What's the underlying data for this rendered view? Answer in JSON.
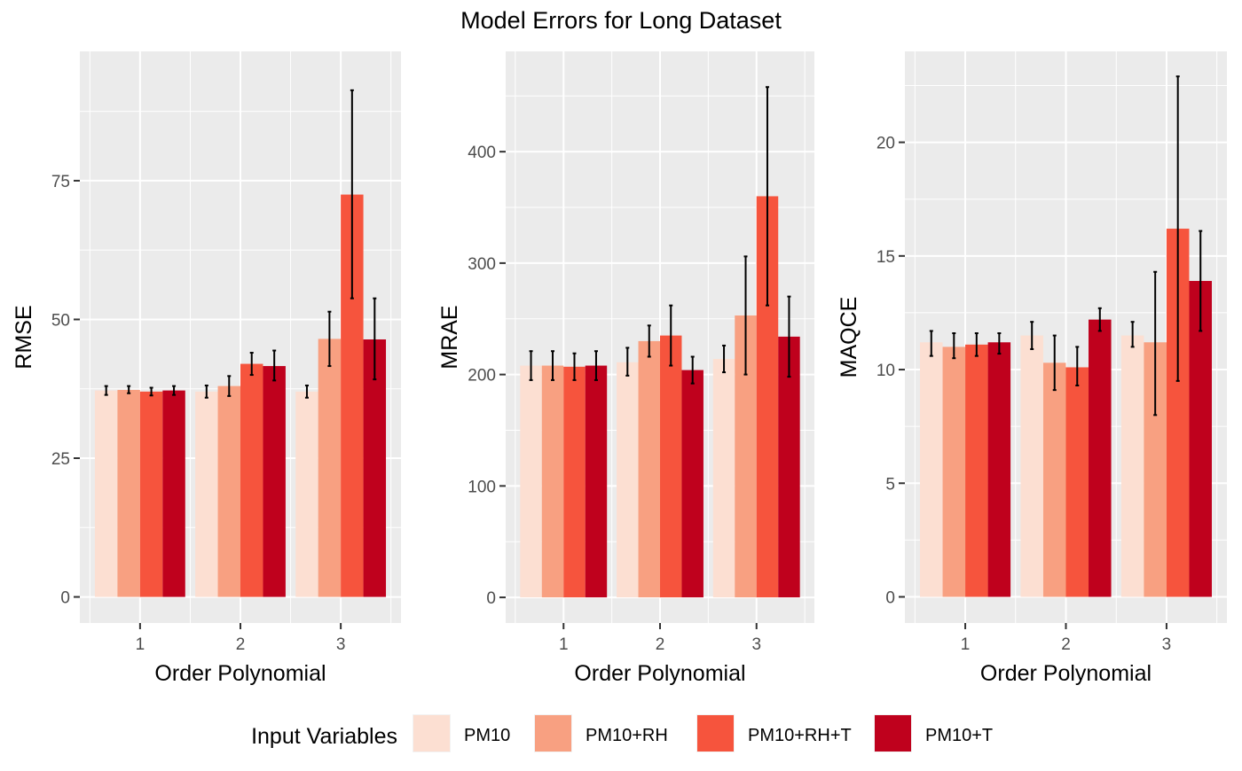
{
  "title": "Model Errors for Long Dataset",
  "legend": {
    "title": "Input Variables",
    "position": "bottom",
    "entries": [
      {
        "label": "PM10",
        "color": "#FCDFD2"
      },
      {
        "label": "PM10+RH",
        "color": "#F8A081"
      },
      {
        "label": "PM10+RH+T",
        "color": "#F6543D"
      },
      {
        "label": "PM10+T",
        "color": "#BF011D"
      }
    ]
  },
  "chart_data": [
    {
      "type": "bar",
      "xlabel": "Order Polynomial",
      "ylabel": "RMSE",
      "categories": [
        "1",
        "2",
        "3"
      ],
      "ylim": [
        -4.7,
        98.3
      ],
      "yticks": [
        0,
        25,
        50,
        75
      ],
      "grid": true,
      "series": [
        {
          "name": "PM10",
          "values": [
            37.2,
            37.0,
            37.0
          ],
          "err_low": [
            36.4,
            35.9,
            35.9
          ],
          "err_high": [
            38.0,
            38.1,
            38.1
          ]
        },
        {
          "name": "PM10+RH",
          "values": [
            37.3,
            38.0,
            46.5
          ],
          "err_low": [
            36.7,
            36.2,
            41.6
          ],
          "err_high": [
            38.0,
            39.8,
            51.4
          ]
        },
        {
          "name": "PM10+RH+T",
          "values": [
            37.0,
            42.0,
            72.5
          ],
          "err_low": [
            36.3,
            40.0,
            53.8
          ],
          "err_high": [
            37.7,
            44.0,
            91.3
          ]
        },
        {
          "name": "PM10+T",
          "values": [
            37.2,
            41.6,
            46.4
          ],
          "err_low": [
            36.4,
            39.0,
            39.2
          ],
          "err_high": [
            38.0,
            44.4,
            53.8
          ]
        }
      ]
    },
    {
      "type": "bar",
      "xlabel": "Order Polynomial",
      "ylabel": "MRAE",
      "categories": [
        "1",
        "2",
        "3"
      ],
      "ylim": [
        -23,
        490
      ],
      "yticks": [
        0,
        100,
        200,
        300,
        400
      ],
      "grid": true,
      "series": [
        {
          "name": "PM10",
          "values": [
            208,
            211,
            214
          ],
          "err_low": [
            195,
            199,
            202
          ],
          "err_high": [
            221,
            224,
            226
          ]
        },
        {
          "name": "PM10+RH",
          "values": [
            208,
            230,
            253
          ],
          "err_low": [
            195,
            216,
            200
          ],
          "err_high": [
            221,
            244,
            306
          ]
        },
        {
          "name": "PM10+RH+T",
          "values": [
            207,
            235,
            360
          ],
          "err_low": [
            195,
            208,
            262
          ],
          "err_high": [
            219,
            262,
            458
          ]
        },
        {
          "name": "PM10+T",
          "values": [
            208,
            204,
            234
          ],
          "err_low": [
            195,
            192,
            198
          ],
          "err_high": [
            221,
            216,
            270
          ]
        }
      ]
    },
    {
      "type": "bar",
      "xlabel": "Order Polynomial",
      "ylabel": "MAQCE",
      "categories": [
        "1",
        "2",
        "3"
      ],
      "ylim": [
        -1.15,
        24.0
      ],
      "yticks": [
        0,
        5,
        10,
        15,
        20
      ],
      "grid": true,
      "series": [
        {
          "name": "PM10",
          "values": [
            11.2,
            11.5,
            11.5
          ],
          "err_low": [
            10.6,
            10.9,
            11.0
          ],
          "err_high": [
            11.7,
            12.1,
            12.1
          ]
        },
        {
          "name": "PM10+RH",
          "values": [
            11.0,
            10.3,
            11.2
          ],
          "err_low": [
            10.5,
            9.1,
            8.0
          ],
          "err_high": [
            11.6,
            11.5,
            14.3
          ]
        },
        {
          "name": "PM10+RH+T",
          "values": [
            11.1,
            10.1,
            16.2
          ],
          "err_low": [
            10.6,
            9.3,
            9.5
          ],
          "err_high": [
            11.6,
            11.0,
            22.9
          ]
        },
        {
          "name": "PM10+T",
          "values": [
            11.2,
            12.2,
            13.9
          ],
          "err_low": [
            10.7,
            11.7,
            11.7
          ],
          "err_high": [
            11.6,
            12.7,
            16.1
          ]
        }
      ]
    }
  ]
}
